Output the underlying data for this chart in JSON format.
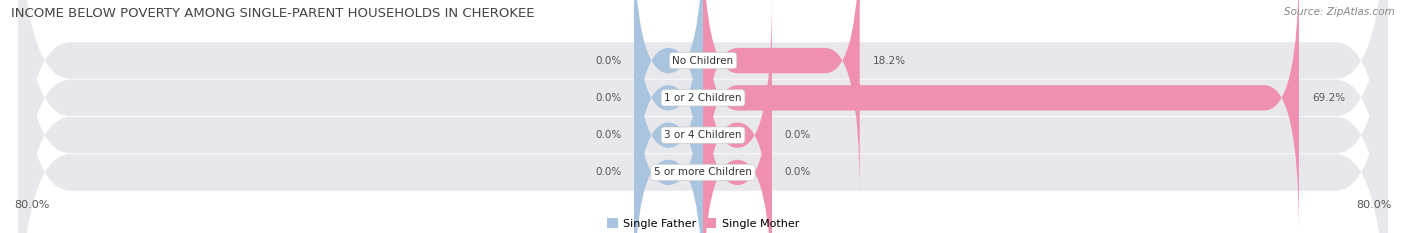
{
  "title": "INCOME BELOW POVERTY AMONG SINGLE-PARENT HOUSEHOLDS IN CHEROKEE",
  "source": "Source: ZipAtlas.com",
  "categories": [
    "No Children",
    "1 or 2 Children",
    "3 or 4 Children",
    "5 or more Children"
  ],
  "single_father": [
    0.0,
    0.0,
    0.0,
    0.0
  ],
  "single_mother": [
    18.2,
    69.2,
    0.0,
    0.0
  ],
  "father_color": "#a8c4de",
  "mother_color": "#f090b0",
  "row_bg_color": "#e8e8ec",
  "xlim_left": -80.0,
  "xlim_right": 80.0,
  "x_left_label": "80.0%",
  "x_right_label": "80.0%",
  "title_fontsize": 9.5,
  "source_fontsize": 7.5,
  "value_fontsize": 7.5,
  "category_fontsize": 7.5,
  "legend_fontsize": 8,
  "axis_label_fontsize": 8,
  "background_color": "#ffffff",
  "min_bar_width": 8.0,
  "bar_height": 0.68,
  "row_padding": 0.15
}
